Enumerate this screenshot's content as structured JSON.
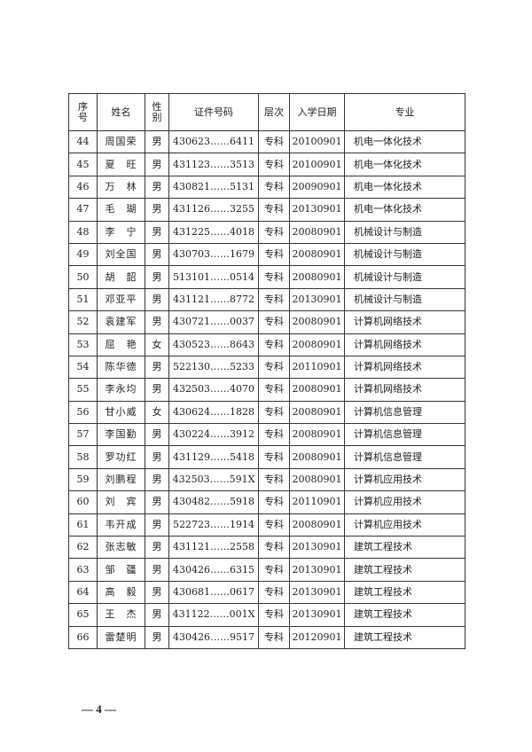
{
  "headers": [
    "序号",
    "姓名",
    "性别",
    "证件号码",
    "层次",
    "入学日期",
    "专业"
  ],
  "rows": [
    [
      "44",
      "周国荣",
      "男",
      "430623……6411",
      "专科",
      "20100901",
      "机电一体化技术"
    ],
    [
      "45",
      "夏　旺",
      "男",
      "431123……3513",
      "专科",
      "20100901",
      "机电一体化技术"
    ],
    [
      "46",
      "万　林",
      "男",
      "430821……5131",
      "专科",
      "20090901",
      "机电一体化技术"
    ],
    [
      "47",
      "毛　瑚",
      "男",
      "431126……3255",
      "专科",
      "20130901",
      "机电一体化技术"
    ],
    [
      "48",
      "李　宁",
      "男",
      "431225……4018",
      "专科",
      "20080901",
      "机械设计与制造"
    ],
    [
      "49",
      "刘全国",
      "男",
      "430703……1679",
      "专科",
      "20080901",
      "机械设计与制造"
    ],
    [
      "50",
      "胡　韶",
      "男",
      "513101……0514",
      "专科",
      "20080901",
      "机械设计与制造"
    ],
    [
      "51",
      "邓亚平",
      "男",
      "431121……8772",
      "专科",
      "20130901",
      "机械设计与制造"
    ],
    [
      "52",
      "袁建军",
      "男",
      "430721……0037",
      "专科",
      "20080901",
      "计算机网络技术"
    ],
    [
      "53",
      "屈　艳",
      "女",
      "430523……8643",
      "专科",
      "20080901",
      "计算机网络技术"
    ],
    [
      "54",
      "陈华德",
      "男",
      "522130……5233",
      "专科",
      "20110901",
      "计算机网络技术"
    ],
    [
      "55",
      "李永均",
      "男",
      "432503……4070",
      "专科",
      "20080901",
      "计算机网络技术"
    ],
    [
      "56",
      "甘小威",
      "女",
      "430624……1828",
      "专科",
      "20080901",
      "计算机信息管理"
    ],
    [
      "57",
      "李国勤",
      "男",
      "430224……3912",
      "专科",
      "20080901",
      "计算机信息管理"
    ],
    [
      "58",
      "罗功红",
      "男",
      "431129……5418",
      "专科",
      "20080901",
      "计算机信息管理"
    ],
    [
      "59",
      "刘鹏程",
      "男",
      "432503……591X",
      "专科",
      "20080901",
      "计算机应用技术"
    ],
    [
      "60",
      "刘　宾",
      "男",
      "430482……5918",
      "专科",
      "20110901",
      "计算机应用技术"
    ],
    [
      "61",
      "韦开成",
      "男",
      "522723……1914",
      "专科",
      "20080901",
      "计算机应用技术"
    ],
    [
      "62",
      "张志敏",
      "男",
      "431121……2558",
      "专科",
      "20130901",
      "建筑工程技术"
    ],
    [
      "63",
      "邹　疆",
      "男",
      "430426……6315",
      "专科",
      "20130901",
      "建筑工程技术"
    ],
    [
      "64",
      "高　毅",
      "男",
      "430681……0617",
      "专科",
      "20130901",
      "建筑工程技术"
    ],
    [
      "65",
      "王　杰",
      "男",
      "431122……001X",
      "专科",
      "20130901",
      "建筑工程技术"
    ],
    [
      "66",
      "雷楚明",
      "男",
      "430426……9517",
      "专科",
      "20120901",
      "建筑工程技术"
    ]
  ],
  "footer": "— 4 —"
}
